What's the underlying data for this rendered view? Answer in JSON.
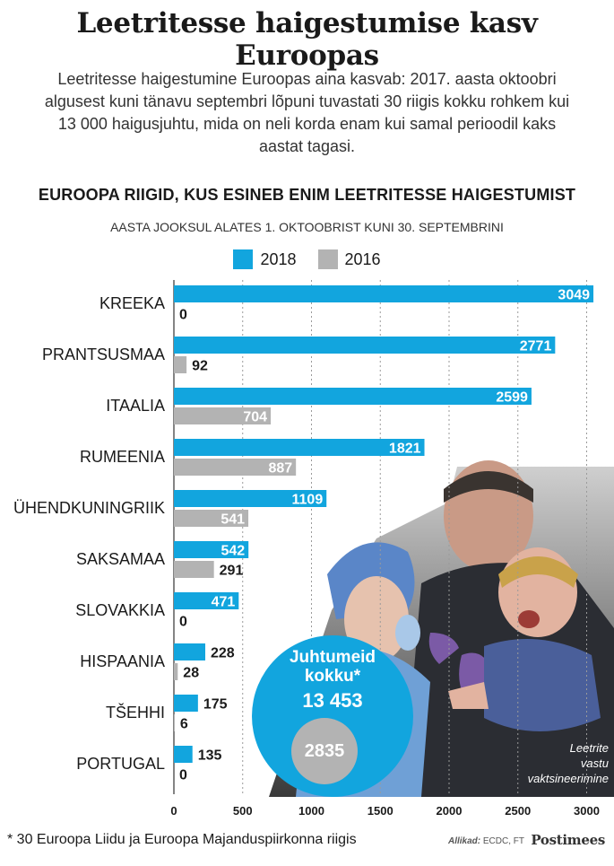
{
  "title": "Leetritesse haigestumise kasv Euroopas",
  "intro": "Leetritesse haigestumine Euroopas aina kasvab: 2017. aasta oktoobri algusest kuni tänavu septembri lõpuni tuvastati 30 riigis kokku rohkem kui 13 000 haigusjuhtu, mida on neli korda enam kui samal perioodil kaks aastat tagasi.",
  "colors": {
    "series_2018": "#12a5de",
    "series_2016": "#b3b3b3"
  },
  "total": {
    "label_line1": "Juhtumeid",
    "label_line2": "kokku*",
    "value_2018": "13 453",
    "value_2016": "2835"
  },
  "photo_caption": [
    "Leetrite",
    "vastu",
    "vaktsineerimine"
  ],
  "footnote": "* 30 Euroopa Liidu ja Euroopa Majanduspiirkonna riigis",
  "source_label": "Allikad:",
  "source_text": "ECDC, FT",
  "brand": "Postimees",
  "chart_data": {
    "type": "bar",
    "orientation": "horizontal",
    "title": "EUROOPA RIIGID, KUS ESINEB ENIM LEETRITESSE HAIGESTUMIST",
    "subtitle": "AASTA JOOKSUL ALATES 1. OKTOOBRIST KUNI 30. SEPTEMBRINI",
    "categories": [
      "KREEKA",
      "PRANTSUSMAA",
      "ITAALIA",
      "RUMEENIA",
      "ÜHENDKUNINGRIIK",
      "SAKSAMAA",
      "SLOVAKKIA",
      "HISPAANIA",
      "TŠEHHI",
      "PORTUGAL"
    ],
    "series": [
      {
        "name": "2018",
        "values": [
          3049,
          2771,
          2599,
          1821,
          1109,
          542,
          471,
          228,
          175,
          135
        ]
      },
      {
        "name": "2016",
        "values": [
          0,
          92,
          704,
          887,
          541,
          291,
          0,
          28,
          6,
          0
        ]
      }
    ],
    "xlim": [
      0,
      3000
    ],
    "xticks": [
      0,
      500,
      1000,
      1500,
      2000,
      2500,
      3000
    ],
    "legend_position": "top"
  }
}
